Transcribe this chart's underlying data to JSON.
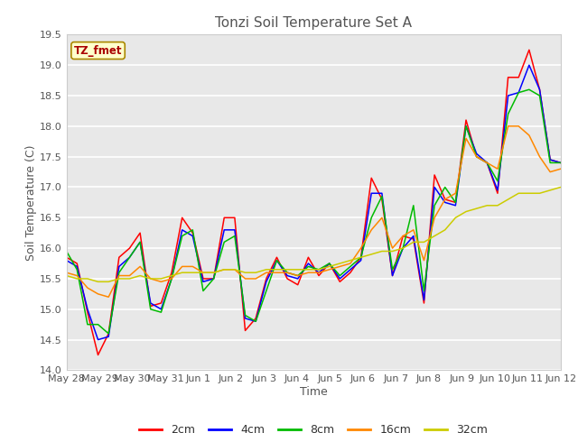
{
  "title": "Tonzi Soil Temperature Set A",
  "xlabel": "Time",
  "ylabel": "Soil Temperature (C)",
  "legend_label": "TZ_fmet",
  "ylim": [
    14.0,
    19.5
  ],
  "yticks": [
    14.0,
    14.5,
    15.0,
    15.5,
    16.0,
    16.5,
    17.0,
    17.5,
    18.0,
    18.5,
    19.0,
    19.5
  ],
  "xtick_labels": [
    "May 28",
    "May 29",
    "May 30",
    "May 31",
    "Jun 1",
    "Jun 2",
    "Jun 3",
    "Jun 4",
    "Jun 5",
    "Jun 6",
    "Jun 7",
    "Jun 8",
    "Jun 9",
    "Jun 10",
    "Jun 11",
    "Jun 12"
  ],
  "colors": {
    "2cm": "#ff0000",
    "4cm": "#0000ff",
    "8cm": "#00bb00",
    "16cm": "#ff8800",
    "32cm": "#cccc00"
  },
  "fig_bg_color": "#ffffff",
  "plot_bg_color": "#e8e8e8",
  "legend_area_bg": "#ffffff",
  "data_2cm": [
    15.85,
    15.75,
    14.95,
    14.25,
    14.6,
    15.85,
    16.0,
    16.25,
    15.05,
    15.1,
    15.6,
    16.5,
    16.25,
    15.5,
    15.5,
    16.5,
    16.5,
    14.65,
    14.85,
    15.5,
    15.85,
    15.5,
    15.4,
    15.85,
    15.55,
    15.75,
    15.45,
    15.6,
    15.85,
    17.15,
    16.8,
    15.55,
    16.2,
    16.15,
    15.1,
    17.2,
    16.8,
    16.75,
    18.1,
    17.5,
    17.4,
    16.9,
    18.8,
    18.8,
    19.25,
    18.6,
    17.45,
    17.4
  ],
  "data_4cm": [
    15.8,
    15.7,
    15.0,
    14.5,
    14.55,
    15.7,
    15.85,
    16.1,
    15.1,
    15.0,
    15.5,
    16.3,
    16.2,
    15.45,
    15.5,
    16.3,
    16.3,
    14.85,
    14.8,
    15.45,
    15.8,
    15.55,
    15.5,
    15.75,
    15.6,
    15.75,
    15.5,
    15.65,
    15.8,
    16.9,
    16.9,
    15.55,
    16.0,
    16.2,
    15.15,
    17.0,
    16.75,
    16.7,
    18.0,
    17.55,
    17.4,
    16.95,
    18.5,
    18.55,
    19.0,
    18.6,
    17.45,
    17.4
  ],
  "data_8cm": [
    15.95,
    15.65,
    14.75,
    14.75,
    14.6,
    15.6,
    15.85,
    16.1,
    15.0,
    14.95,
    15.5,
    16.2,
    16.3,
    15.3,
    15.5,
    16.1,
    16.2,
    14.9,
    14.8,
    15.3,
    15.8,
    15.6,
    15.55,
    15.7,
    15.65,
    15.75,
    15.55,
    15.7,
    15.85,
    16.5,
    16.85,
    15.65,
    16.0,
    16.7,
    15.3,
    16.7,
    17.0,
    16.75,
    18.0,
    17.5,
    17.4,
    17.1,
    18.2,
    18.55,
    18.6,
    18.5,
    17.4,
    17.4
  ],
  "data_16cm": [
    15.6,
    15.55,
    15.35,
    15.25,
    15.2,
    15.55,
    15.55,
    15.7,
    15.5,
    15.45,
    15.5,
    15.7,
    15.7,
    15.6,
    15.6,
    15.65,
    15.65,
    15.5,
    15.5,
    15.6,
    15.6,
    15.6,
    15.55,
    15.6,
    15.6,
    15.65,
    15.7,
    15.75,
    16.0,
    16.3,
    16.5,
    16.0,
    16.2,
    16.3,
    15.8,
    16.5,
    16.8,
    16.9,
    17.8,
    17.5,
    17.4,
    17.3,
    18.0,
    18.0,
    17.85,
    17.5,
    17.25,
    17.3
  ],
  "data_32cm": [
    15.55,
    15.5,
    15.5,
    15.45,
    15.45,
    15.5,
    15.5,
    15.55,
    15.5,
    15.5,
    15.55,
    15.6,
    15.6,
    15.6,
    15.6,
    15.65,
    15.65,
    15.6,
    15.6,
    15.65,
    15.65,
    15.65,
    15.65,
    15.65,
    15.65,
    15.7,
    15.75,
    15.8,
    15.85,
    15.9,
    15.95,
    15.95,
    16.0,
    16.1,
    16.1,
    16.2,
    16.3,
    16.5,
    16.6,
    16.65,
    16.7,
    16.7,
    16.8,
    16.9,
    16.9,
    16.9,
    16.95,
    17.0
  ]
}
